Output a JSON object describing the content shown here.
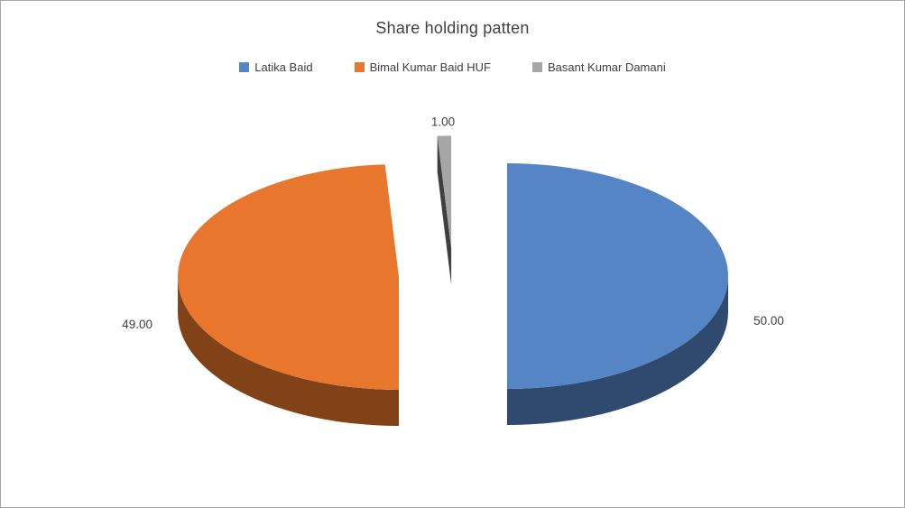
{
  "chart_data": {
    "type": "pie",
    "style": "3d-exploded",
    "title": "Share holding patten",
    "categories": [
      "Latika Baid",
      "Bimal Kumar Baid HUF",
      "Basant Kumar Damani"
    ],
    "values": [
      50,
      49,
      1
    ],
    "data_labels": [
      "50.00",
      "49.00",
      "1.00"
    ],
    "colors": [
      "#5585C5",
      "#E8762C",
      "#A6A6A6"
    ],
    "legend_position": "top",
    "legend_entries": [
      "Latika Baid",
      "Bimal Kumar Baid HUF",
      "Basant Kumar Damani"
    ],
    "text_color": "#404040",
    "border_color": "#A6A6A6",
    "background": "#FFFFFF"
  }
}
